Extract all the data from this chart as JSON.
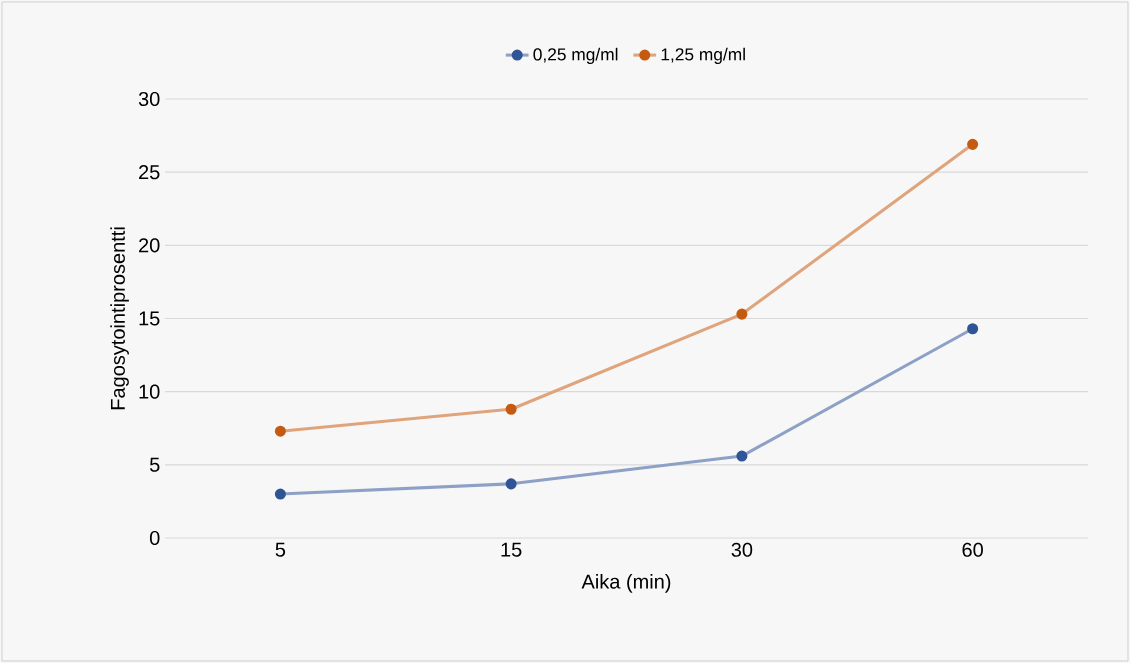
{
  "chart_data": {
    "type": "line",
    "xlabel": "Aika (min)",
    "ylabel": "Fagosytointiprosentti",
    "categories": [
      "5",
      "15",
      "30",
      "60"
    ],
    "series": [
      {
        "name": "0,25 mg/ml",
        "color": "#2f5597",
        "values": [
          3.0,
          3.7,
          5.6,
          14.3
        ]
      },
      {
        "name": "1,25 mg/ml",
        "color": "#c55a11",
        "values": [
          7.3,
          8.8,
          15.3,
          26.9
        ]
      }
    ],
    "ylim": [
      0,
      30
    ],
    "yticks": [
      0,
      5,
      10,
      15,
      20,
      25,
      30
    ],
    "grid": "y",
    "legend": "top",
    "marker": "circle"
  }
}
